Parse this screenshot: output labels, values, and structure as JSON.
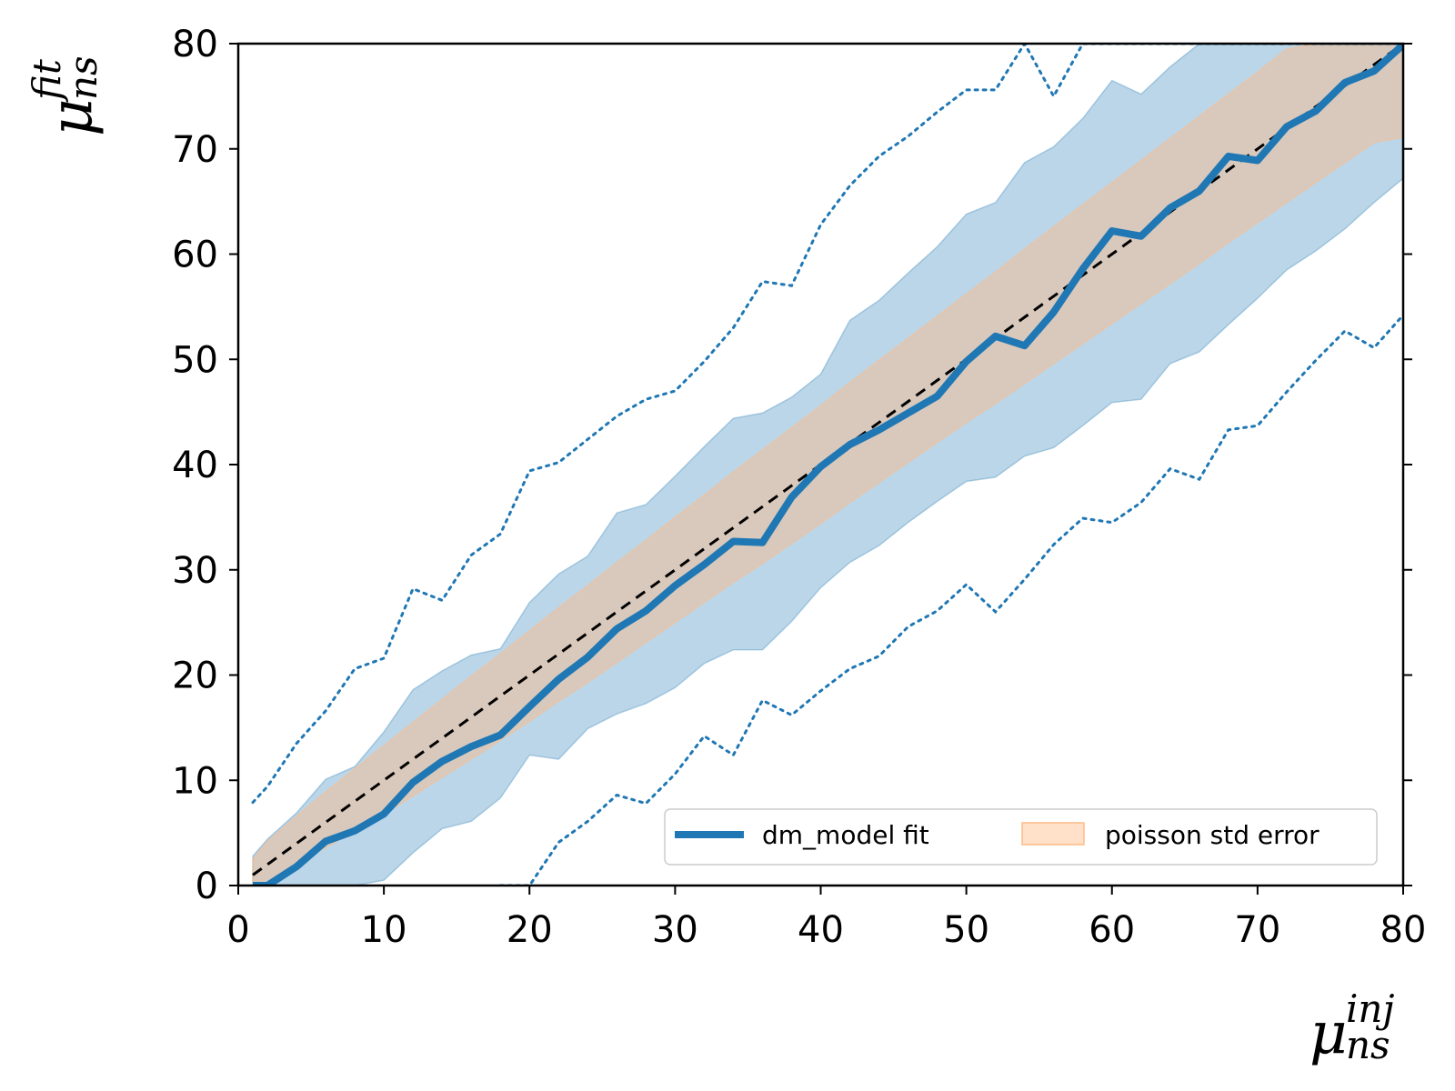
{
  "chart_data": {
    "type": "line",
    "title": "",
    "xlabel": {
      "symbol": "μ",
      "sup": "inj",
      "sub": "ns"
    },
    "ylabel": {
      "symbol": "μ",
      "sup": "fit",
      "sub": "ns"
    },
    "xlim": [
      0,
      80
    ],
    "ylim": [
      0,
      80
    ],
    "xticks": [
      "0",
      "10",
      "20",
      "30",
      "40",
      "50",
      "60",
      "70",
      "80"
    ],
    "yticks": [
      "0",
      "10",
      "20",
      "30",
      "40",
      "50",
      "60",
      "70",
      "80"
    ],
    "grid": false,
    "legend_position": "lower-right",
    "legend_columns": 2,
    "colors": {
      "fit": "#1f77b4",
      "band": "#1f77b4",
      "poisson": "#ffbb88",
      "reference": "#000000"
    },
    "x": [
      1,
      2,
      4,
      6,
      8,
      10,
      12,
      14,
      16,
      18,
      20,
      22,
      24,
      26,
      28,
      30,
      32,
      34,
      36,
      38,
      40,
      42,
      44,
      46,
      48,
      50,
      52,
      54,
      56,
      58,
      60,
      62,
      64,
      66,
      68,
      70,
      72,
      74,
      76,
      78,
      80
    ],
    "series": [
      {
        "name": "dm_model fit",
        "role": "fit-line",
        "values": [
          0,
          0,
          1.8,
          4.2,
          5.2,
          6.8,
          9.8,
          11.8,
          13.2,
          14.3,
          17.0,
          19.6,
          21.7,
          24.4,
          26.1,
          28.5,
          30.5,
          32.7,
          32.6,
          36.9,
          39.8,
          41.9,
          43.3,
          44.9,
          46.5,
          49.8,
          52.2,
          51.3,
          54.5,
          58.6,
          62.2,
          61.7,
          64.4,
          66.0,
          69.3,
          68.9,
          72.1,
          73.6,
          76.3,
          77.4,
          79.9
        ]
      },
      {
        "role": "band-upper",
        "values": [
          2.8,
          4.4,
          6.9,
          10.1,
          11.3,
          14.6,
          18.6,
          20.4,
          21.9,
          22.5,
          26.9,
          29.6,
          31.3,
          35.4,
          36.2,
          38.9,
          41.7,
          44.4,
          44.9,
          46.4,
          48.6,
          53.7,
          55.6,
          58.2,
          60.7,
          63.8,
          64.9,
          68.7,
          70.2,
          72.9,
          76.5,
          75.2,
          77.8,
          80.0,
          80.0,
          80.0,
          80.0,
          80.0,
          80.0,
          80.0,
          80.0
        ]
      },
      {
        "role": "band-lower",
        "values": [
          0,
          0,
          0,
          0,
          0,
          0.5,
          3.1,
          5.4,
          6.1,
          8.3,
          12.4,
          12.0,
          14.9,
          16.3,
          17.3,
          18.8,
          21.1,
          22.4,
          22.4,
          25.1,
          28.3,
          30.7,
          32.3,
          34.5,
          36.5,
          38.4,
          38.8,
          40.8,
          41.6,
          43.7,
          45.9,
          46.2,
          49.6,
          50.7,
          53.3,
          55.8,
          58.5,
          60.3,
          62.4,
          64.9,
          67.2
        ]
      },
      {
        "role": "dotted-upper",
        "values": [
          7.9,
          9.4,
          13.5,
          16.6,
          20.6,
          21.6,
          28.2,
          27.1,
          31.4,
          33.4,
          39.4,
          40.2,
          42.4,
          44.6,
          46.2,
          47.0,
          49.8,
          53.0,
          57.4,
          57.0,
          62.8,
          66.5,
          69.3,
          71.2,
          73.5,
          75.6,
          75.6,
          80.0,
          75.0,
          80.0,
          80.0,
          80.0,
          80.0,
          80.0,
          80.0,
          80.0,
          80.0,
          80.0,
          80.0,
          80.0,
          80.0
        ]
      },
      {
        "role": "dotted-lower",
        "values": [
          null,
          null,
          null,
          null,
          null,
          null,
          null,
          null,
          null,
          0,
          0,
          4.1,
          6.1,
          8.6,
          7.8,
          10.6,
          14.2,
          12.4,
          17.6,
          16.2,
          18.5,
          20.6,
          21.8,
          24.6,
          26.1,
          28.6,
          26.0,
          29.1,
          32.4,
          34.9,
          34.5,
          36.4,
          39.6,
          38.6,
          43.3,
          43.7,
          46.9,
          49.9,
          52.7,
          51.1,
          54.2
        ]
      },
      {
        "role": "reference-line",
        "values": [
          1,
          2,
          4,
          6,
          8,
          10,
          12,
          14,
          16,
          18,
          20,
          22,
          24,
          26,
          28,
          30,
          32,
          34,
          36,
          38,
          40,
          42,
          44,
          46,
          48,
          50,
          52,
          54,
          56,
          58,
          60,
          62,
          64,
          66,
          68,
          70,
          72,
          74,
          76,
          78,
          80
        ]
      },
      {
        "name": "poisson std error",
        "role": "poisson-band",
        "upper": [
          2.5,
          4.2,
          6.6,
          8.9,
          11.1,
          13.3,
          15.5,
          17.7,
          19.9,
          22.0,
          24.2,
          26.4,
          28.5,
          30.7,
          32.8,
          35.0,
          37.1,
          39.3,
          41.4,
          43.5,
          45.6,
          47.8,
          49.9,
          52.0,
          54.1,
          56.2,
          58.3,
          60.5,
          62.6,
          64.7,
          66.8,
          68.9,
          71.0,
          73.1,
          75.2,
          77.3,
          79.5,
          80.0,
          80.0,
          80.0,
          80.0
        ],
        "lower": [
          0,
          0,
          2.0,
          3.6,
          5.2,
          6.8,
          8.5,
          10.3,
          12.0,
          13.8,
          15.6,
          17.5,
          19.3,
          21.2,
          23.1,
          25.0,
          26.9,
          28.8,
          30.6,
          32.5,
          34.4,
          36.4,
          38.3,
          40.2,
          42.1,
          44.0,
          45.8,
          47.7,
          49.6,
          51.5,
          53.4,
          55.3,
          57.2,
          59.1,
          61.1,
          63.0,
          64.9,
          66.8,
          68.7,
          70.6,
          71.1
        ]
      }
    ]
  }
}
